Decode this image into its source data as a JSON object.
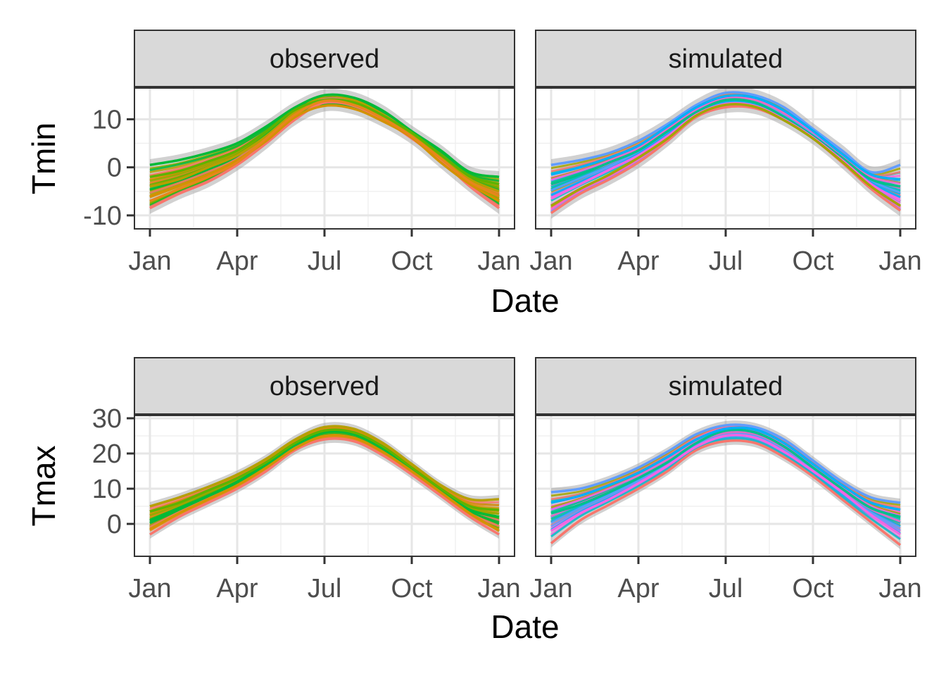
{
  "chart_data": [
    {
      "type": "line",
      "ylabel": "Tmin",
      "xlabel": "Date",
      "x_ticks": [
        "Jan",
        "Apr",
        "Jul",
        "Oct",
        "Jan"
      ],
      "y_ticks": [
        10,
        0,
        -10
      ],
      "ylim": [
        -12.8,
        16.5
      ],
      "grid": true,
      "panels": [
        {
          "facet": "observed",
          "palette": [
            "#f8766d",
            "#e7861b",
            "#d39200",
            "#b79f00",
            "#93aa00",
            "#5eb300",
            "#00ba38"
          ],
          "x_months": [
            0,
            1,
            2,
            3,
            4,
            5,
            6,
            7,
            8,
            9,
            10,
            11,
            12
          ],
          "series": [
            {
              "values": [
                -8.5,
                -5.5,
                -3.0,
                0.5,
                5.0,
                10.0,
                13.5,
                12.8,
                10.0,
                6.0,
                1.5,
                -4.0,
                -8.5
              ]
            },
            {
              "values": [
                -4.0,
                -2.5,
                0.0,
                2.5,
                6.5,
                11.5,
                14.8,
                14.0,
                11.0,
                6.8,
                2.0,
                -2.5,
                -5.0
              ]
            },
            {
              "values": [
                0.5,
                1.5,
                3.0,
                5.0,
                8.5,
                12.5,
                15.0,
                14.5,
                11.8,
                7.5,
                3.5,
                -1.0,
                -2.0
              ]
            },
            {
              "values": [
                -6.0,
                -3.8,
                -1.5,
                1.5,
                5.5,
                10.5,
                12.8,
                12.2,
                9.6,
                6.2,
                1.0,
                -3.5,
                -7.0
              ]
            },
            {
              "values": [
                -2.0,
                -0.8,
                1.2,
                3.5,
                7.5,
                12.0,
                14.0,
                13.5,
                10.8,
                7.2,
                2.6,
                -1.8,
                -3.5
              ]
            },
            {
              "values": [
                -7.0,
                -4.5,
                -2.0,
                1.0,
                6.0,
                11.0,
                13.8,
                13.0,
                10.2,
                6.4,
                1.8,
                -3.0,
                -6.0
              ]
            }
          ]
        },
        {
          "facet": "simulated",
          "palette": [
            "#f8766d",
            "#f564e3",
            "#ff61c3",
            "#619cff",
            "#00b0f6",
            "#00bfc4",
            "#00c08b",
            "#a3a500"
          ],
          "x_months": [
            0,
            1,
            2,
            3,
            4,
            5,
            6,
            7,
            8,
            9,
            10,
            11,
            12
          ],
          "series": [
            {
              "values": [
                -9.5,
                -5.5,
                -2.5,
                1.0,
                5.5,
                10.5,
                12.5,
                12.3,
                9.8,
                6.0,
                1.0,
                -4.5,
                -9.0
              ]
            },
            {
              "values": [
                0.5,
                1.5,
                3.0,
                5.5,
                9.0,
                13.0,
                15.5,
                15.0,
                12.5,
                8.0,
                3.5,
                -1.0,
                0.5
              ]
            },
            {
              "values": [
                -3.5,
                -1.5,
                1.0,
                3.5,
                7.5,
                11.5,
                14.0,
                13.5,
                10.5,
                6.5,
                2.0,
                -2.5,
                -4.0
              ]
            },
            {
              "values": [
                -6.5,
                -3.5,
                -0.5,
                2.5,
                6.5,
                11.0,
                13.2,
                12.8,
                10.0,
                6.2,
                1.5,
                -3.5,
                -7.0
              ]
            },
            {
              "values": [
                -1.5,
                0.0,
                2.0,
                4.5,
                8.5,
                12.5,
                14.8,
                14.5,
                11.8,
                7.6,
                2.8,
                -1.5,
                -2.5
              ]
            },
            {
              "values": [
                -8.0,
                -4.5,
                -1.5,
                2.0,
                6.0,
                10.8,
                13.0,
                12.6,
                9.8,
                6.0,
                1.2,
                -4.0,
                -8.0
              ]
            }
          ]
        }
      ]
    },
    {
      "type": "line",
      "ylabel": "Tmax",
      "xlabel": "Date",
      "x_ticks": [
        "Jan",
        "Apr",
        "Jul",
        "Oct",
        "Jan"
      ],
      "y_ticks": [
        30,
        20,
        10,
        0
      ],
      "ylim": [
        -9.2,
        30.8
      ],
      "grid": true,
      "panels": [
        {
          "facet": "observed",
          "palette": [
            "#f8766d",
            "#e7861b",
            "#d39200",
            "#b79f00",
            "#93aa00",
            "#5eb300",
            "#00ba38"
          ],
          "x_months": [
            0,
            1,
            2,
            3,
            4,
            5,
            6,
            7,
            8,
            9,
            10,
            11,
            12
          ],
          "series": [
            {
              "values": [
                -3.0,
                2.0,
                6.0,
                10.0,
                15.0,
                21.0,
                24.0,
                23.5,
                19.5,
                14.0,
                8.0,
                2.0,
                -3.0
              ]
            },
            {
              "values": [
                5.0,
                7.5,
                10.5,
                14.0,
                18.5,
                24.0,
                27.5,
                27.0,
                23.0,
                17.0,
                11.0,
                7.0,
                7.0
              ]
            },
            {
              "values": [
                1.0,
                4.5,
                8.0,
                12.0,
                17.0,
                22.5,
                26.0,
                25.5,
                21.5,
                15.5,
                9.5,
                4.0,
                2.0
              ]
            },
            {
              "values": [
                -1.5,
                3.0,
                7.0,
                11.0,
                16.0,
                21.5,
                25.0,
                24.5,
                20.5,
                15.0,
                9.0,
                3.0,
                -2.0
              ]
            },
            {
              "values": [
                3.5,
                6.0,
                9.5,
                13.0,
                17.5,
                23.0,
                26.5,
                26.0,
                22.0,
                16.0,
                10.0,
                5.0,
                4.0
              ]
            }
          ]
        },
        {
          "facet": "simulated",
          "palette": [
            "#f8766d",
            "#f564e3",
            "#ff61c3",
            "#619cff",
            "#00b0f6",
            "#00bfc4",
            "#00c08b",
            "#a3a500"
          ],
          "x_months": [
            0,
            1,
            2,
            3,
            4,
            5,
            6,
            7,
            8,
            9,
            10,
            11,
            12
          ],
          "series": [
            {
              "values": [
                -5.5,
                1.0,
                5.5,
                10.0,
                15.0,
                21.0,
                23.5,
                23.0,
                19.0,
                13.5,
                7.0,
                0.5,
                -6.0
              ]
            },
            {
              "values": [
                9.0,
                10.0,
                12.5,
                16.0,
                20.5,
                25.5,
                28.0,
                27.5,
                24.0,
                18.0,
                12.0,
                7.5,
                6.0
              ]
            },
            {
              "values": [
                3.0,
                5.5,
                9.0,
                13.0,
                17.5,
                23.0,
                26.5,
                26.0,
                22.0,
                16.0,
                10.0,
                4.5,
                2.0
              ]
            },
            {
              "values": [
                -2.0,
                3.0,
                7.0,
                11.5,
                16.5,
                22.0,
                25.0,
                24.5,
                20.5,
                15.0,
                9.0,
                2.5,
                -3.0
              ]
            },
            {
              "values": [
                6.0,
                8.0,
                11.0,
                14.5,
                19.0,
                24.0,
                27.0,
                26.8,
                23.0,
                17.0,
                11.0,
                6.0,
                4.0
              ]
            }
          ]
        }
      ]
    }
  ]
}
